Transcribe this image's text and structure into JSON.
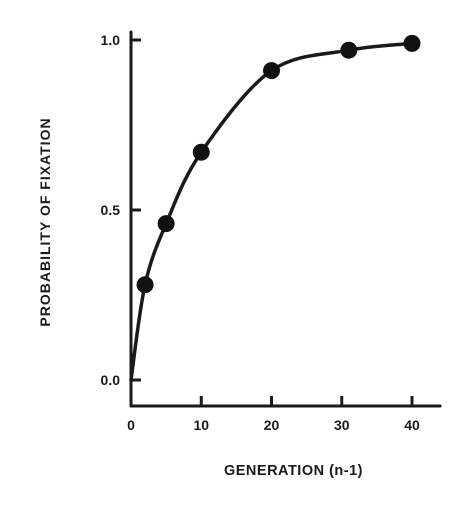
{
  "chart_data": {
    "type": "line",
    "xlabel": "GENERATION (n-1)",
    "ylabel": "PROBABILITY OF FIXATION",
    "xlim": [
      0,
      44
    ],
    "ylim": [
      0,
      1.0
    ],
    "x_ticks": [
      0,
      10,
      20,
      30,
      40
    ],
    "x_tick_labels": [
      "0",
      "10",
      "20",
      "30",
      "40"
    ],
    "y_ticks": [
      0,
      0.5,
      1.0
    ],
    "y_tick_labels": [
      "0.0",
      "0.5",
      "1.0"
    ],
    "grid": false,
    "series": [
      {
        "x": [
          2,
          5,
          10,
          20,
          31,
          40
        ],
        "y": [
          0.28,
          0.46,
          0.67,
          0.91,
          0.97,
          0.99
        ]
      }
    ],
    "colors": {
      "ink": "#1a1a1a",
      "marker": "#111111"
    }
  }
}
